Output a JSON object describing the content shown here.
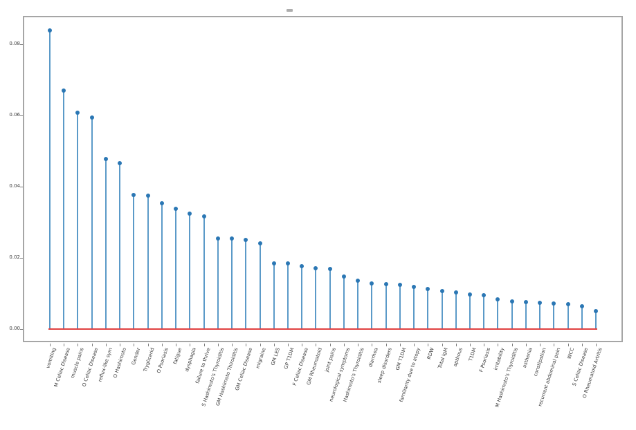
{
  "figure": {
    "background": "#ffffff",
    "title": ""
  },
  "chart_data": {
    "type": "scatter",
    "variant": "stem-lollipop",
    "title": "",
    "xlabel": "",
    "ylabel": "",
    "grid": false,
    "legend": "none",
    "ylim": [
      -0.002,
      0.088
    ],
    "yticks": [
      "0.00",
      "0.02",
      "0.04",
      "0.06",
      "0.08"
    ],
    "ytick_values": [
      0.0,
      0.02,
      0.04,
      0.06,
      0.08
    ],
    "categories": [
      "vomiting",
      "M Celiac Disease",
      "muscle pains",
      "O Celiac Disease",
      "reflux-like sym",
      "O Hashimoto",
      "Gender",
      "Tryglicerid",
      "O Psoriasis",
      "fatigue",
      "dysphagia",
      "failure to thrive",
      "S Hashimoto's Thyroiditis",
      "GM Hashimoto Thiroiditis",
      "GM Celiac Disease",
      "migraine",
      "GM LES",
      "GP T1DM",
      "F Celiac Disease",
      "GM Rheumatoid",
      "joint pains",
      "neurological symptoms",
      "Hashimoto's Thyroiditis",
      "diarrhea",
      "sleep disorders",
      "GM T1DM",
      "familiarity due to atopy",
      "RDW",
      "Total IgM",
      "apthous",
      "T1DM",
      "F Psoriasis",
      "irritability",
      "M Hashimoto's Thyroiditis",
      "asthenia",
      "constipation",
      "recurrent abdominal pain",
      "WCC",
      "S Celiac Disease",
      "O Rheumatoid Artritis"
    ],
    "values": [
      0.0837,
      0.0669,
      0.0607,
      0.0593,
      0.0476,
      0.0466,
      0.0375,
      0.0373,
      0.0353,
      0.0336,
      0.0324,
      0.0315,
      0.0254,
      0.0253,
      0.0249,
      0.0239,
      0.0184,
      0.0183,
      0.0175,
      0.0169,
      0.0168,
      0.0146,
      0.0134,
      0.0128,
      0.0125,
      0.0124,
      0.0118,
      0.0111,
      0.0105,
      0.0101,
      0.0097,
      0.0095,
      0.0083,
      0.0077,
      0.0075,
      0.0072,
      0.007,
      0.0068,
      0.0064,
      0.005
    ],
    "colors": {
      "stem_line": "#5b9ac8",
      "marker": "#2b77b4",
      "baseline": "#e04040",
      "spine": "#a6a6a6",
      "tick_label": "#3a3a3a"
    }
  }
}
